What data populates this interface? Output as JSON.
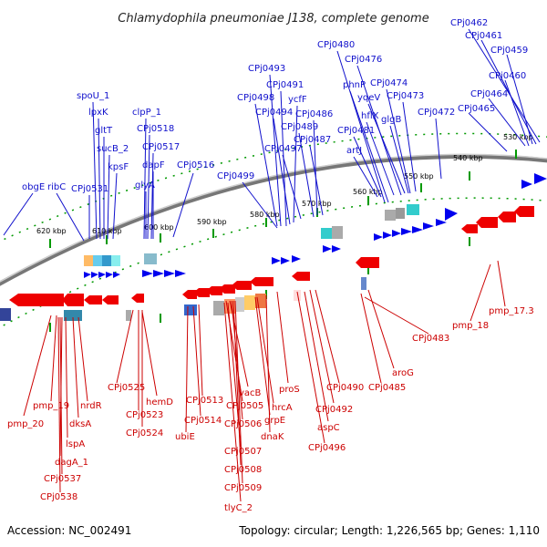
{
  "title": "Chlamydophila pneumoniae J138, complete genome",
  "footer": {
    "accession": "Accession: NC_002491",
    "stats": "Topology: circular; Length: 1,226,565 bp; Genes: 1,110"
  },
  "colors": {
    "forward": "#0000ee",
    "reverse": "#ee0000",
    "forward_label": "#1010cc",
    "reverse_label": "#cc0000",
    "backbone": "#888888",
    "ticks": "#009900"
  },
  "scale_ticks": [
    "620 kbp",
    "610 kbp",
    "600 kbp",
    "590 kbp",
    "580 kbp",
    "570 kbp",
    "560 kbp",
    "550 kbp",
    "540 kbp",
    "530 kbp"
  ],
  "forward_genes": [
    "obgE",
    "ribC",
    "CPj0531",
    "spoU_1",
    "lpxK",
    "gltT",
    "sucB_2",
    "kpsF",
    "clpP_1",
    "CPj0518",
    "CPj0517",
    "dapF",
    "glyA",
    "CPj0516",
    "CPj0499",
    "CPj0493",
    "CPj0491",
    "CPj0498",
    "CPj0494",
    "ycfF",
    "CPj0486",
    "CPj0489",
    "CPj0487",
    "CPj0497",
    "CPj0480",
    "phnP",
    "CPj0476",
    "yqeV",
    "CPj0474",
    "hflX",
    "CPj0473",
    "glgB",
    "CPj0481",
    "artJ",
    "CPj0472",
    "CPj0462",
    "CPj0461",
    "CPj0459",
    "CPj0460",
    "CPj0464",
    "CPj0465"
  ],
  "reverse_genes": [
    "pmp_20",
    "pmp_19",
    "dagA_1",
    "lspA",
    "dksA",
    "nrdR",
    "CPj0537",
    "CPj0538",
    "CPj0525",
    "CPj0523",
    "CPj0524",
    "hemD",
    "ubiE",
    "CPj0514",
    "CPj0513",
    "CPj0505",
    "vacB",
    "CPj0506",
    "CPj0507",
    "CPj0508",
    "CPj0509",
    "tlyC_2",
    "hrcA",
    "grpE",
    "dnaK",
    "proS",
    "CPj0490",
    "CPj0492",
    "aspC",
    "CPj0496",
    "CPj0485",
    "aroG",
    "CPj0483",
    "pmp_18",
    "pmp_17.3"
  ]
}
